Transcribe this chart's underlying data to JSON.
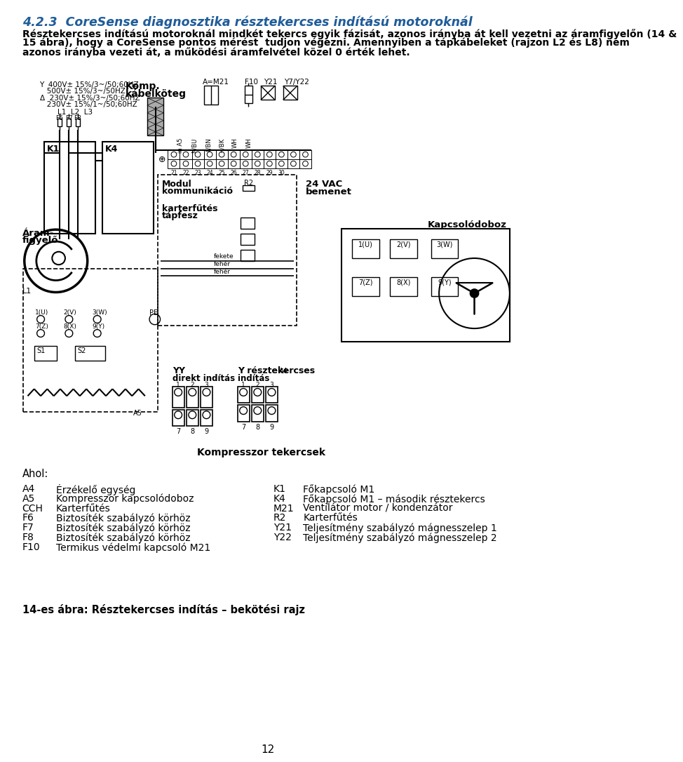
{
  "title": "4.2.3  CoreSense diagnosztika résztekercses indítású motoroknál",
  "title_color": "#1F5C99",
  "body_lines": [
    "Résztekercses indítású motoroknál mindkét tekercs egyik fázisát, azonos irányba át kell vezetni az áramfigyelőn (14 &",
    "15 ábra), hogy a CoreSense pontos mérést  tudjon végezni. Amennyiben a tápkábeleket (rajzon L2 és L8) nem",
    "azonos irányba vezeti át, a működési áramfelvétel közel 0 érték lehet."
  ],
  "ahol_label": "Ahol:",
  "left_items": [
    [
      "A4",
      "Érzékelő egység"
    ],
    [
      "A5",
      "Kompresszor kapcsolódoboz"
    ],
    [
      "CCH",
      "Karterfűtés"
    ],
    [
      "F6",
      "Biztosíték szabályzó körhöz"
    ],
    [
      "F7",
      "Biztosíték szabályzó körhöz"
    ],
    [
      "F8",
      "Biztosíték szabályzó körhöz"
    ],
    [
      "F10",
      "Termikus védelmi kapcsoló M21"
    ]
  ],
  "right_items": [
    [
      "K1",
      "Főkapcsoló M1"
    ],
    [
      "K4",
      "Főkapcsoló M1 – második résztekercs"
    ],
    [
      "M21",
      "Ventilátor motor / kondenzátor"
    ],
    [
      "R2",
      "Karterfűtés"
    ],
    [
      "Y21",
      "Teljesítmény szabályzó mágnesszelep 1"
    ],
    [
      "Y22",
      "Teljesítmény szabályzó mágnesszelep 2"
    ]
  ],
  "caption": "14-es ábra: Résztekercses indítás – bekötési rajz",
  "page_number": "12",
  "bg_color": "#ffffff",
  "text_color": "#000000",
  "font_size_title": 12.5,
  "font_size_body": 10.0,
  "font_size_legend": 10.0,
  "font_size_caption": 10.5
}
